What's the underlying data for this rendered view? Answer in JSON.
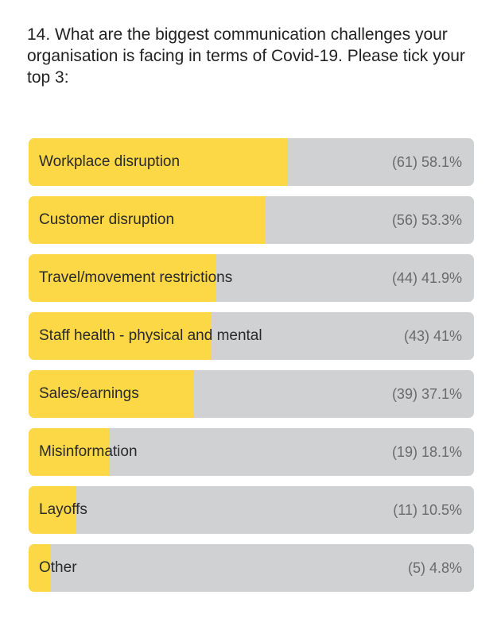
{
  "question": "14. What are the biggest communication challenges your organisation is facing in terms of Covid-19.  Please tick your top 3:",
  "colors": {
    "fill": "#fcd846",
    "track": "#cfd1d3"
  },
  "chart_data": {
    "type": "bar",
    "orientation": "horizontal",
    "title": "",
    "categories": [
      "Workplace disruption",
      "Customer disruption",
      "Travel/movement restrictions",
      "Staff health - physical and mental",
      "Sales/earnings",
      "Misinformation",
      "Layoffs",
      "Other"
    ],
    "counts": [
      61,
      56,
      44,
      43,
      39,
      19,
      11,
      5
    ],
    "values": [
      58.1,
      53.3,
      41.9,
      41,
      37.1,
      18.1,
      10.5,
      4.8
    ],
    "value_labels": [
      "(61) 58.1%",
      "(56) 53.3%",
      "(44) 41.9%",
      "(43) 41%",
      "(39) 37.1%",
      "(19) 18.1%",
      "(11) 10.5%",
      "(5) 4.8%"
    ],
    "xlim": [
      0,
      100
    ],
    "unit": "%"
  }
}
